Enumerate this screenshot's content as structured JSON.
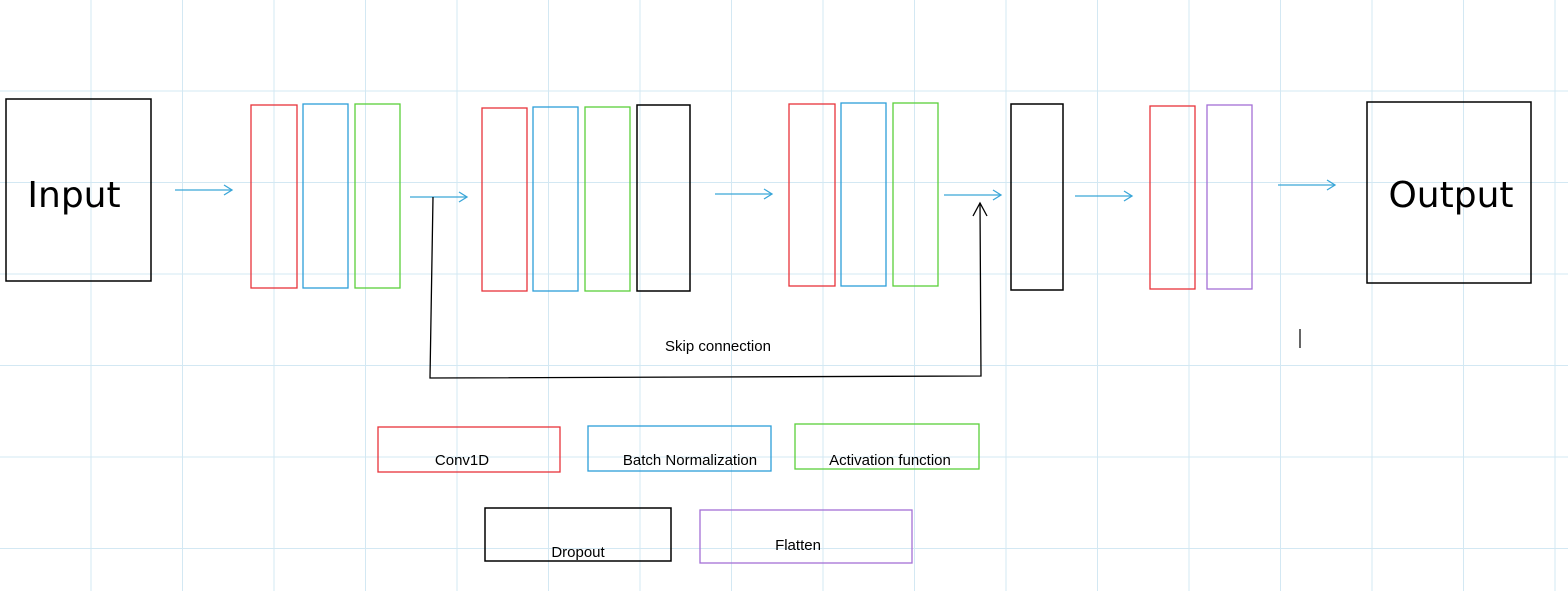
{
  "diagram": {
    "input_label": "Input",
    "output_label": "Output",
    "skip_label": "Skip connection",
    "colors": {
      "conv": "#e8333a",
      "batchnorm": "#2c9fd9",
      "activation": "#5bd03a",
      "dropout": "#000000",
      "flatten": "#a36fd6",
      "arrow": "#3aa6d8",
      "grid": "#d3e8f3"
    }
  },
  "legend": {
    "conv": "Conv1D",
    "batchnorm": "Batch Normalization",
    "activation": "Activation function",
    "dropout": "Dropout",
    "flatten": "Flatten"
  }
}
